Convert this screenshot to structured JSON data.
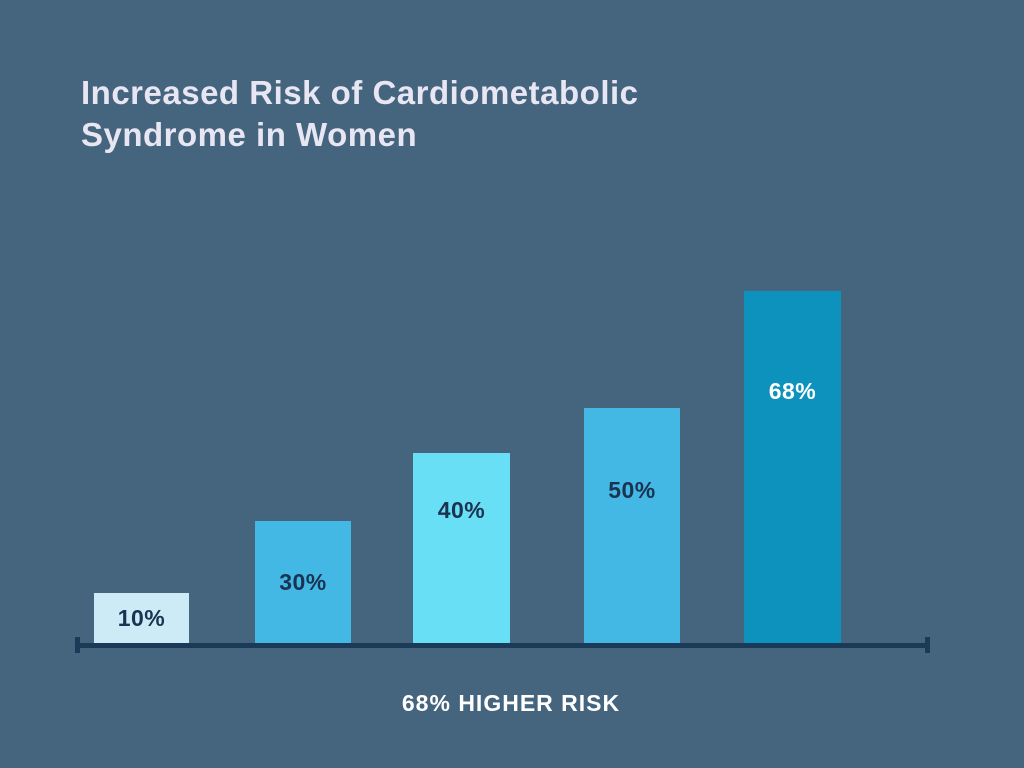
{
  "title": {
    "line1": "Increased Risk of Cardiometabolic",
    "line2": "Syndrome in Women"
  },
  "caption": "68% HIGHER RISK",
  "colors": {
    "background": "#45657F",
    "axis": "#1B3A57",
    "title_text": "#E8E6F3",
    "caption_text": "#FFFFFF"
  },
  "chart_data": {
    "type": "bar",
    "title": "Increased Risk of Cardiometabolic Syndrome in Women",
    "values": [
      10,
      30,
      40,
      50,
      68
    ],
    "labels": [
      "10%",
      "30%",
      "40%",
      "50%",
      "68%"
    ],
    "bar_colors": [
      "#CDEBF6",
      "#43B8E5",
      "#69DFF6",
      "#43B8E5",
      "#0C92BC"
    ],
    "label_colors": [
      "#1A3350",
      "#1A3350",
      "#1A3350",
      "#1A3350",
      "#FFFFFF"
    ],
    "xlabel": "",
    "ylabel": "",
    "categories_visible": false,
    "legend": false,
    "grid": false,
    "annotation": "68% HIGHER RISK",
    "baseline": "x-axis line with end ticks, no y-axis"
  }
}
